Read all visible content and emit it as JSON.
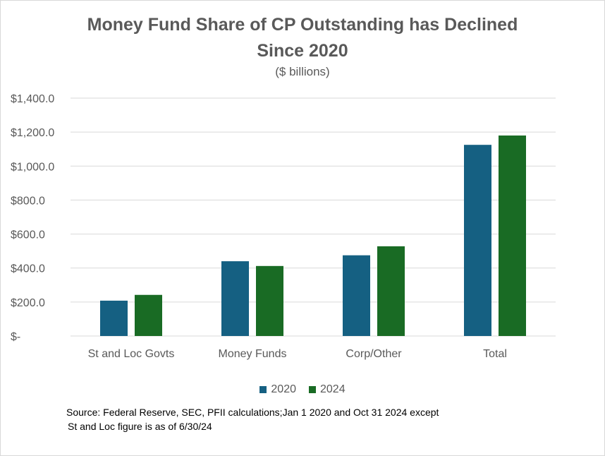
{
  "chart_data": {
    "type": "bar",
    "title_line1": "Money Fund Share of CP Outstanding has Declined",
    "title_line2": "Since 2020",
    "subtitle": "($ billions)",
    "categories": [
      "St and Loc Govts",
      "Money Funds",
      "Corp/Other",
      "Total"
    ],
    "series": [
      {
        "name": "2020",
        "values": [
          208,
          440,
          475,
          1125
        ],
        "color": "#156082"
      },
      {
        "name": "2024",
        "values": [
          242,
          412,
          528,
          1180
        ],
        "color": "#196b24"
      }
    ],
    "ylim": [
      0,
      1400
    ],
    "yticks": [
      0,
      200,
      400,
      600,
      800,
      1000,
      1200,
      1400
    ],
    "ytick_labels": [
      "$-",
      "$200.0",
      "$400.0",
      "$600.0",
      "$800.0",
      "$1,000.0",
      "$1,200.0",
      "$1,400.0"
    ],
    "grid": true,
    "legend_position": "bottom"
  },
  "note": {
    "line1": "Source:  Federal Reserve, SEC, PFII calculations;Jan 1 2020 and Oct 31 2024 except",
    "line2": "St and Loc figure is as of 6/30/24"
  },
  "colors": {
    "gridline": "#d9d9d9",
    "text": "#595959"
  }
}
